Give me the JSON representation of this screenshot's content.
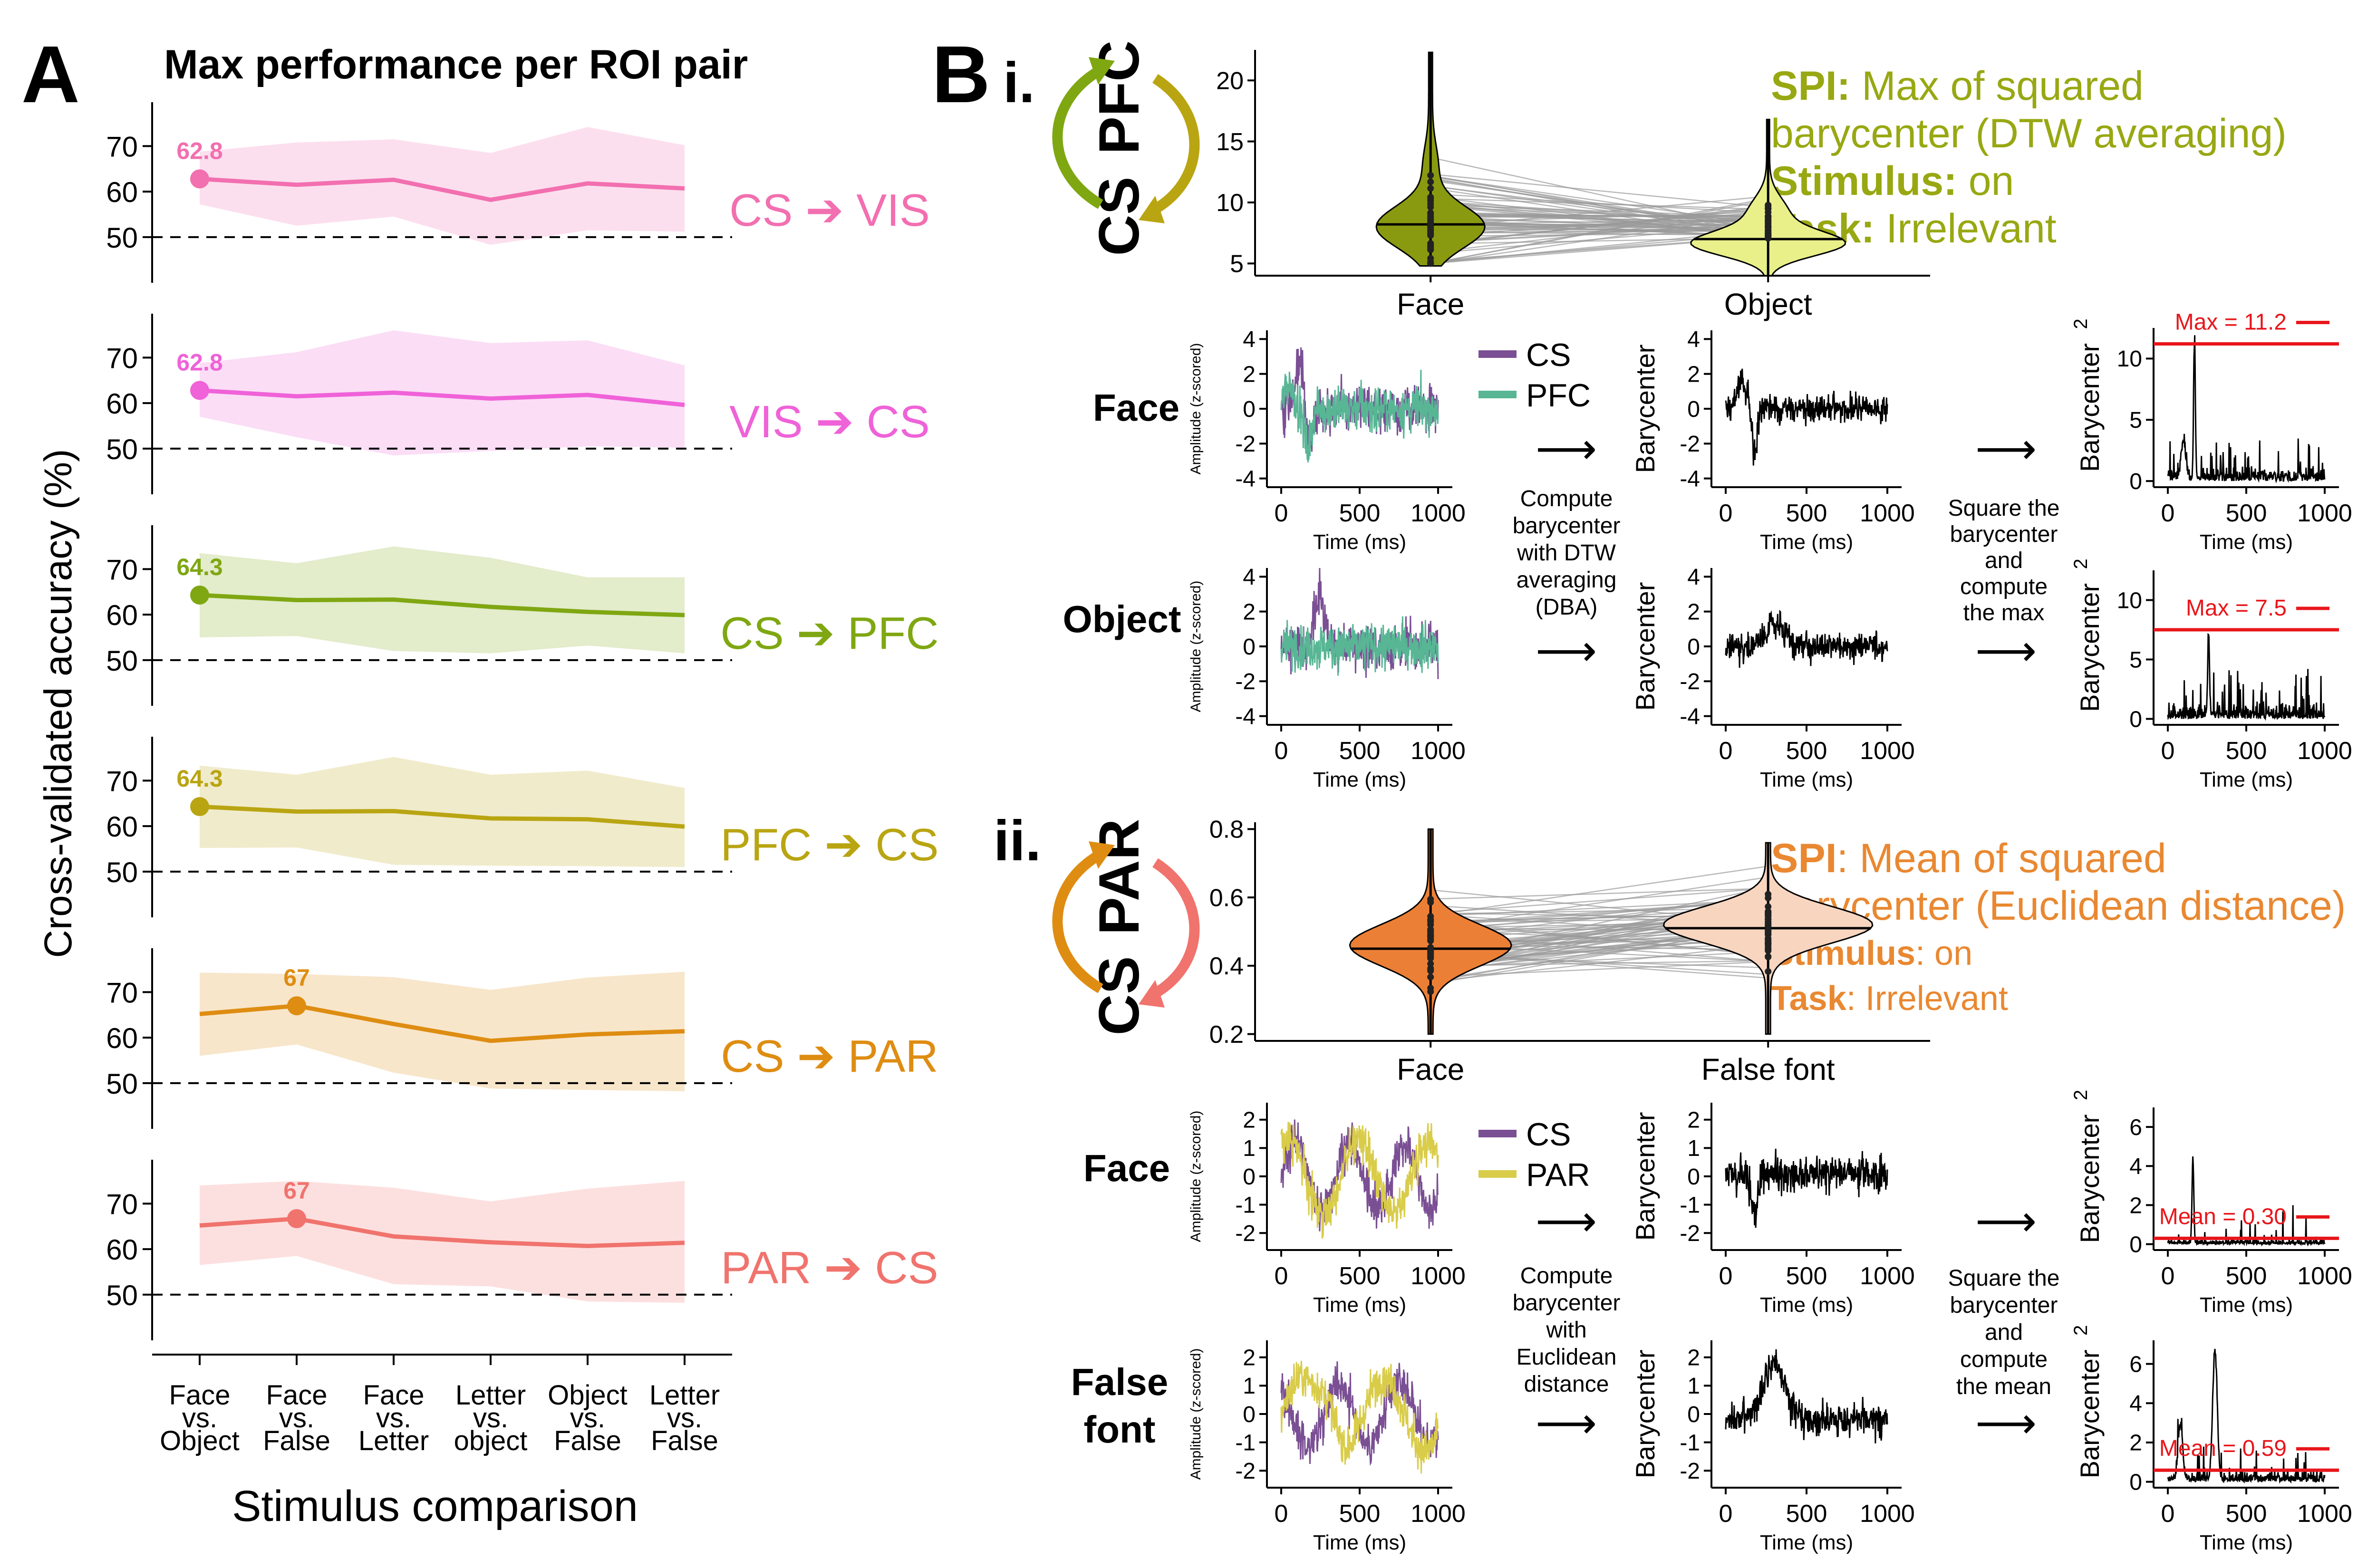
{
  "panel_a": {
    "letter": "A",
    "title": "Max performance per ROI pair",
    "ylabel": "Cross-validated accuracy (%)",
    "xlabel": "Stimulus comparison",
    "categories": [
      [
        "Face",
        "vs.",
        "Object"
      ],
      [
        "Face",
        "vs.",
        "False"
      ],
      [
        "Face",
        "vs.",
        "Letter"
      ],
      [
        "Letter",
        "vs.",
        "object"
      ],
      [
        "Object",
        "vs.",
        "False"
      ],
      [
        "Letter",
        "vs.",
        "False"
      ]
    ],
    "yticks": [
      "70",
      "60",
      "50"
    ]
  },
  "panel_b": {
    "letter": "B",
    "i": {
      "numeral": "i.",
      "roi_a": "CS",
      "roi_b": "PFC",
      "violin_categories": [
        "Face",
        "Object"
      ],
      "violin_yticks": [
        "20",
        "15",
        "10",
        "5"
      ],
      "spi_key": "SPI:",
      "spi_line1": "Max of squared",
      "spi_line2": "barycenter (DTW averaging)",
      "stim_key": "Stimulus:",
      "stim_val": "on",
      "task_key": "Task:",
      "task_val": "Irrelevant",
      "rows": [
        "Face",
        "Object"
      ],
      "legend": [
        "CS",
        "PFC"
      ],
      "compute_step": [
        "Compute",
        "barycenter",
        "with DTW",
        "averaging",
        "(DBA)"
      ],
      "final_step": [
        "Square the",
        "barycenter",
        "and",
        "compute",
        "the max"
      ],
      "stats": [
        "Max = 11.2",
        "Max = 7.5"
      ],
      "amp_yticks": [
        "4",
        "2",
        "0",
        "-2",
        "-4"
      ],
      "bary_yticks": [
        "4",
        "2",
        "0",
        "-2",
        "-4"
      ],
      "sq_yticks": [
        "10",
        "5",
        "0"
      ]
    },
    "ii": {
      "numeral": "ii.",
      "roi_a": "CS",
      "roi_b": "PAR",
      "violin_categories": [
        "Face",
        "False font"
      ],
      "violin_yticks": [
        "0.8",
        "0.6",
        "0.4",
        "0.2"
      ],
      "spi_key": "SPI",
      "spi_line1": ": Mean of squared",
      "spi_line2": "barycenter (Euclidean distance)",
      "stim_key": "Stimulus",
      "stim_val": ": on",
      "task_key": "Task",
      "task_val": ": Irrelevant",
      "rows": [
        "Face",
        "False",
        "font"
      ],
      "legend": [
        "CS",
        "PAR"
      ],
      "compute_step": [
        "Compute",
        "barycenter",
        "with",
        "Euclidean",
        "distance"
      ],
      "final_step": [
        "Square the",
        "barycenter",
        "and",
        "compute",
        "the mean"
      ],
      "stats": [
        "Mean = 0.30",
        "Mean = 0.59"
      ],
      "amp_yticks": [
        "2",
        "1",
        "0",
        "-1",
        "-2"
      ],
      "bary_yticks": [
        "2",
        "1",
        "0",
        "-1",
        "-2"
      ],
      "sq_yticks_row1": [
        "6",
        "4",
        "2",
        "0"
      ],
      "sq_yticks_row2": [
        "6",
        "4",
        "2",
        "0"
      ]
    },
    "amp_ylabel": "Amplitude (z-scored)",
    "bary_ylabel": "Barycenter",
    "sq_ylabel": "Barycenter",
    "sq_sup": "2",
    "time_label": "Time (ms)",
    "time_ticks": [
      "0",
      "500",
      "1000"
    ],
    "arrow_glyph": "⟶"
  },
  "colors": {
    "CS_VIS": "#f26fb0",
    "VIS_CS": "#ef62d8",
    "CS_PFC": "#7fa712",
    "PFC_CS": "#b9a512",
    "CS_PAR": "#de8d12",
    "PAR_CS": "#f0736d",
    "olive_text": "#98a812",
    "orange_text": "#e98831",
    "purple": "#7a4f94",
    "teal": "#58b695",
    "yellow": "#d9cc49",
    "red": "#e8161b",
    "violin_face_i": "#8a9a10",
    "violin_obj_i": "#e9f08a",
    "violin_face_ii": "#ec7f36",
    "violin_ff_ii": "#f7d5bf"
  },
  "chart_data": [
    {
      "type": "line",
      "title": "Max performance per ROI pair",
      "xlabel": "Stimulus comparison",
      "ylabel": "Cross-validated accuracy (%)",
      "categories": [
        "Face vs. Object",
        "Face vs. False",
        "Face vs. Letter",
        "Letter vs. object",
        "Object vs. False",
        "Letter vs. False"
      ],
      "ylim": [
        48,
        76
      ],
      "chance_level": 50,
      "series": [
        {
          "name": "CS ➔ VIS",
          "color": "#f26fb0",
          "values": [
            62.8,
            61.5,
            62.6,
            58.2,
            61.8,
            60.7
          ],
          "upper": [
            68.8,
            70.8,
            71.5,
            68.5,
            74.2,
            70.2
          ],
          "lower": [
            57.2,
            52.5,
            54.5,
            48.3,
            51.5,
            51.2
          ],
          "peak_index": 0,
          "peak_label": "62.8"
        },
        {
          "name": "VIS ➔ CS",
          "color": "#ef62d8",
          "values": [
            62.8,
            61.5,
            62.3,
            61.0,
            61.8,
            59.6
          ],
          "upper": [
            68.8,
            71.2,
            76.0,
            73.2,
            73.8,
            68.3
          ],
          "lower": [
            57.0,
            52.5,
            48.5,
            49.5,
            50.5,
            50.2
          ],
          "peak_index": 0,
          "peak_label": "62.8"
        },
        {
          "name": "CS ➔ PFC",
          "color": "#7fa712",
          "values": [
            64.3,
            63.2,
            63.3,
            61.7,
            60.6,
            59.9
          ],
          "upper": [
            73.5,
            71.3,
            75.0,
            72.5,
            68.2,
            68.2
          ],
          "lower": [
            55.0,
            55.3,
            52.0,
            51.5,
            53.2,
            51.5
          ],
          "peak_index": 0,
          "peak_label": "64.3"
        },
        {
          "name": "PFC ➔ CS",
          "color": "#b9a512",
          "values": [
            64.3,
            63.2,
            63.3,
            61.7,
            61.5,
            59.9
          ],
          "upper": [
            73.3,
            71.3,
            75.2,
            71.3,
            72.2,
            68.4
          ],
          "lower": [
            55.2,
            55.3,
            51.5,
            51.3,
            51.2,
            51.0
          ],
          "peak_index": 0,
          "peak_label": "64.3"
        },
        {
          "name": "CS ➔ PAR",
          "color": "#de8d12",
          "values": [
            65.2,
            67.0,
            63.0,
            59.3,
            60.7,
            61.4
          ],
          "upper": [
            74.3,
            74.0,
            73.3,
            70.5,
            73.2,
            74.5
          ],
          "lower": [
            56.0,
            58.5,
            52.3,
            48.8,
            48.5,
            48.2
          ],
          "peak_index": 1,
          "peak_label": "67"
        },
        {
          "name": "PAR ➔ CS",
          "color": "#f0736d",
          "values": [
            65.2,
            66.7,
            62.8,
            61.5,
            60.7,
            61.4
          ],
          "upper": [
            74.0,
            75.0,
            73.5,
            70.5,
            73.3,
            75.0
          ],
          "lower": [
            56.5,
            58.5,
            52.3,
            51.8,
            48.5,
            48.2
          ],
          "peak_index": 1,
          "peak_label": "67"
        }
      ]
    },
    {
      "type": "violin",
      "panel": "B.i",
      "categories": [
        "Face",
        "Object"
      ],
      "ylim": [
        4,
        22.5
      ],
      "medians": [
        8.2,
        7.0
      ],
      "ranges": [
        [
          4.8,
          22.3
        ],
        [
          4.0,
          16.8
        ]
      ]
    },
    {
      "type": "violin",
      "panel": "B.ii",
      "categories": [
        "Face",
        "False font"
      ],
      "ylim": [
        0.18,
        0.82
      ],
      "medians": [
        0.45,
        0.51
      ],
      "ranges": [
        [
          0.2,
          0.8
        ],
        [
          0.2,
          0.76
        ]
      ]
    },
    {
      "type": "line",
      "panel": "B.i squared barycenter",
      "xlabel": "Time (ms)",
      "xlim": [
        0,
        1000
      ],
      "summary": [
        {
          "row": "Face",
          "max": 11.2,
          "peak_time_ms": 150
        },
        {
          "row": "Object",
          "max": 7.5,
          "peak_time_ms": 260
        }
      ]
    },
    {
      "type": "line",
      "panel": "B.ii squared barycenter",
      "xlabel": "Time (ms)",
      "xlim": [
        0,
        1000
      ],
      "summary": [
        {
          "row": "Face",
          "mean": 0.3,
          "peak_time_ms": 160,
          "peak": 4.5
        },
        {
          "row": "False font",
          "mean": 0.59,
          "peak_time_ms": 300,
          "peak": 6.8
        }
      ]
    }
  ]
}
